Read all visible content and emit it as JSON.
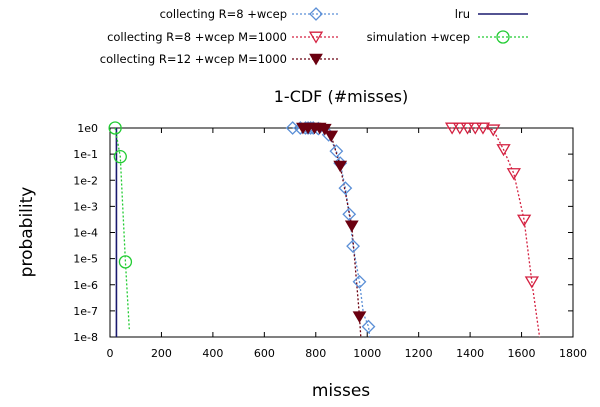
{
  "chart_data": {
    "type": "line",
    "title": "1-CDF (#misses)",
    "xlabel": "misses",
    "ylabel": "probability",
    "xlim": [
      0,
      1800
    ],
    "ylim_log10": [
      -8,
      0
    ],
    "yscale": "log",
    "grid": false,
    "legend_position": "top",
    "xticks": [
      {
        "value": 0,
        "label": "0"
      },
      {
        "value": 200,
        "label": "200"
      },
      {
        "value": 400,
        "label": "400"
      },
      {
        "value": 600,
        "label": "600"
      },
      {
        "value": 800,
        "label": "800"
      },
      {
        "value": 1000,
        "label": "1000"
      },
      {
        "value": 1200,
        "label": "1200"
      },
      {
        "value": 1400,
        "label": "1400"
      },
      {
        "value": 1600,
        "label": "1600"
      },
      {
        "value": 1800,
        "label": "1800"
      }
    ],
    "yticks": [
      {
        "exp": 0,
        "label": "1e0"
      },
      {
        "exp": -1,
        "label": "1e-1"
      },
      {
        "exp": -2,
        "label": "1e-2"
      },
      {
        "exp": -3,
        "label": "1e-3"
      },
      {
        "exp": -4,
        "label": "1e-4"
      },
      {
        "exp": -5,
        "label": "1e-5"
      },
      {
        "exp": -6,
        "label": "1e-6"
      },
      {
        "exp": -7,
        "label": "1e-7"
      },
      {
        "exp": -8,
        "label": "1e-8"
      }
    ],
    "series": [
      {
        "name": "collecting R=8 +wcep",
        "color": "#5b8fd6",
        "dash": "dotted",
        "marker": "diamond-open",
        "line": [
          [
            710,
            1
          ],
          [
            750,
            1
          ],
          [
            780,
            1
          ],
          [
            810,
            0.95
          ],
          [
            850,
            0.55
          ],
          [
            880,
            0.13
          ],
          [
            895,
            0.045
          ],
          [
            915,
            0.005
          ],
          [
            930,
            0.0005
          ],
          [
            945,
            3e-05
          ],
          [
            970,
            1.3e-06
          ],
          [
            985,
            8e-08
          ],
          [
            1005,
            2.5e-08
          ],
          [
            1010,
            1e-08
          ]
        ],
        "points": [
          [
            710,
            1
          ],
          [
            740,
            1
          ],
          [
            760,
            1
          ],
          [
            770,
            1
          ],
          [
            780,
            1
          ],
          [
            790,
            1
          ],
          [
            810,
            0.95
          ],
          [
            850,
            0.55
          ],
          [
            880,
            0.13
          ],
          [
            895,
            0.045
          ],
          [
            915,
            0.005
          ],
          [
            930,
            0.0005
          ],
          [
            945,
            3e-05
          ],
          [
            970,
            1.3e-06
          ],
          [
            1005,
            2.5e-08
          ]
        ]
      },
      {
        "name": "collecting R=8 +wcep M=1000",
        "color": "#d42040",
        "dash": "dotted",
        "marker": "triangle-down-open",
        "line": [
          [
            1310,
            1
          ],
          [
            1350,
            1
          ],
          [
            1400,
            1
          ],
          [
            1450,
            1
          ],
          [
            1490,
            0.85
          ],
          [
            1530,
            0.15
          ],
          [
            1570,
            0.018
          ],
          [
            1610,
            0.0003
          ],
          [
            1640,
            1.3e-06
          ],
          [
            1670,
            1e-08
          ]
        ],
        "points": [
          [
            1330,
            1
          ],
          [
            1360,
            1
          ],
          [
            1390,
            1
          ],
          [
            1420,
            1
          ],
          [
            1450,
            1
          ],
          [
            1490,
            0.85
          ],
          [
            1530,
            0.15
          ],
          [
            1570,
            0.018
          ],
          [
            1610,
            0.0003
          ],
          [
            1640,
            1.3e-06
          ]
        ]
      },
      {
        "name": "collecting R=12 +wcep M=1000",
        "color": "#6b0010",
        "dash": "dotted",
        "marker": "triangle-down-filled",
        "line": [
          [
            750,
            1
          ],
          [
            790,
            1
          ],
          [
            830,
            0.9
          ],
          [
            860,
            0.5
          ],
          [
            895,
            0.035
          ],
          [
            940,
            0.00018
          ],
          [
            970,
            6e-08
          ],
          [
            975,
            1e-08
          ]
        ],
        "points": [
          [
            750,
            1
          ],
          [
            770,
            1
          ],
          [
            795,
            1
          ],
          [
            815,
            1
          ],
          [
            835,
            0.9
          ],
          [
            860,
            0.5
          ],
          [
            895,
            0.035
          ],
          [
            940,
            0.00018
          ],
          [
            970,
            6e-08
          ]
        ]
      },
      {
        "name": "lru",
        "color": "#1a1a6e",
        "dash": "solid",
        "marker": "none",
        "line": [
          [
            25,
            1
          ],
          [
            25,
            1e-08
          ]
        ],
        "points": []
      },
      {
        "name": "simulation +wcep",
        "color": "#22cc33",
        "dash": "dotted",
        "marker": "circle-open",
        "line": [
          [
            20,
            1
          ],
          [
            40,
            0.08
          ],
          [
            60,
            7.5e-06
          ],
          [
            75,
            2e-08
          ]
        ],
        "points": [
          [
            20,
            1
          ],
          [
            40,
            0.08
          ],
          [
            60,
            7.5e-06
          ]
        ]
      }
    ]
  }
}
